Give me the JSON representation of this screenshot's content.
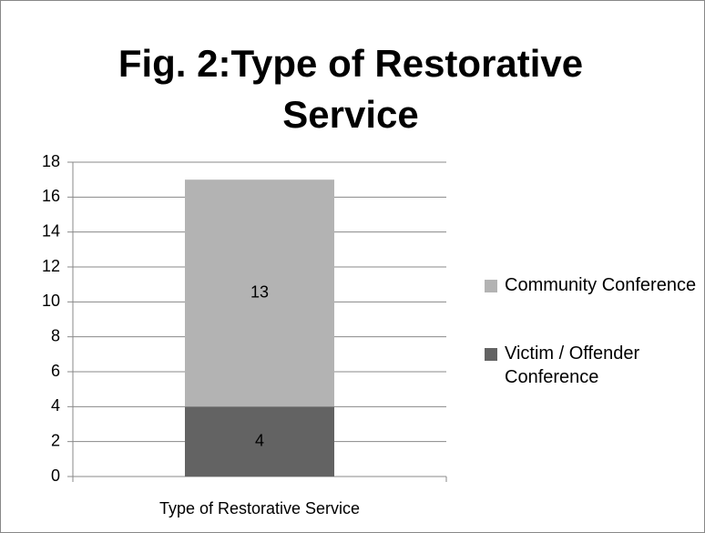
{
  "chart_data": {
    "type": "stacked_bar",
    "title": "Fig. 2:Type of Restorative Service",
    "categories": [
      "Type of Restorative Service"
    ],
    "series": [
      {
        "name": "Victim / Offender Conference",
        "color": "#636363",
        "values": [
          4
        ]
      },
      {
        "name": "Community Conference",
        "color": "#b3b3b3",
        "values": [
          13
        ]
      }
    ],
    "ylim": [
      0,
      18
    ],
    "yticks": [
      0,
      2,
      4,
      6,
      8,
      10,
      12,
      14,
      16,
      18
    ],
    "grid": true,
    "legend": "right"
  }
}
